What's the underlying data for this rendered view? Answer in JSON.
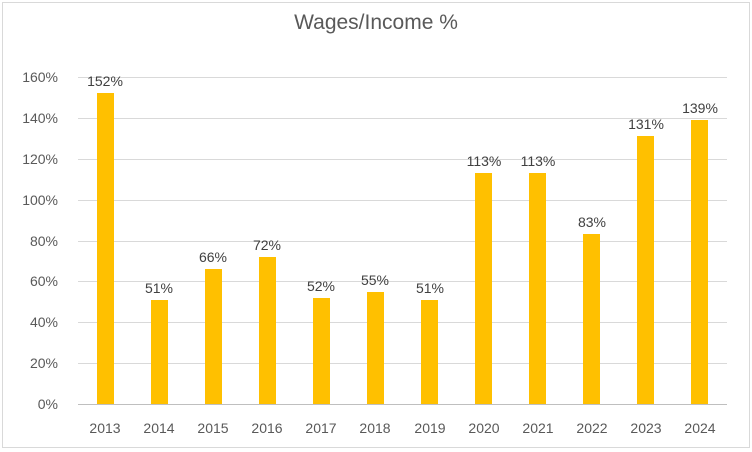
{
  "chart_data": {
    "type": "bar",
    "title": "Wages/Income %",
    "categories": [
      "2013",
      "2014",
      "2015",
      "2016",
      "2017",
      "2018",
      "2019",
      "2020",
      "2021",
      "2022",
      "2023",
      "2024"
    ],
    "values": [
      152,
      51,
      66,
      72,
      52,
      55,
      51,
      113,
      113,
      83,
      131,
      139
    ],
    "data_labels": [
      "152%",
      "51%",
      "66%",
      "72%",
      "52%",
      "55%",
      "51%",
      "113%",
      "113%",
      "83%",
      "131%",
      "139%"
    ],
    "xlabel": "",
    "ylabel": "",
    "ylim": [
      0,
      160
    ],
    "y_ticks": [
      {
        "value": 0,
        "label": "0%"
      },
      {
        "value": 20,
        "label": "20%"
      },
      {
        "value": 40,
        "label": "40%"
      },
      {
        "value": 60,
        "label": "60%"
      },
      {
        "value": 80,
        "label": "80%"
      },
      {
        "value": 100,
        "label": "100%"
      },
      {
        "value": 120,
        "label": "120%"
      },
      {
        "value": 140,
        "label": "140%"
      },
      {
        "value": 160,
        "label": "160%"
      }
    ],
    "grid": true,
    "legend": false,
    "colors": {
      "bar": "#FFC000",
      "gridline": "#D9D9D9",
      "axis_line": "#BFBFBF",
      "tick_text": "#595959",
      "title_text": "#595959",
      "data_label_text": "#404040",
      "border": "#D9D9D9",
      "background": "#FFFFFF"
    }
  }
}
